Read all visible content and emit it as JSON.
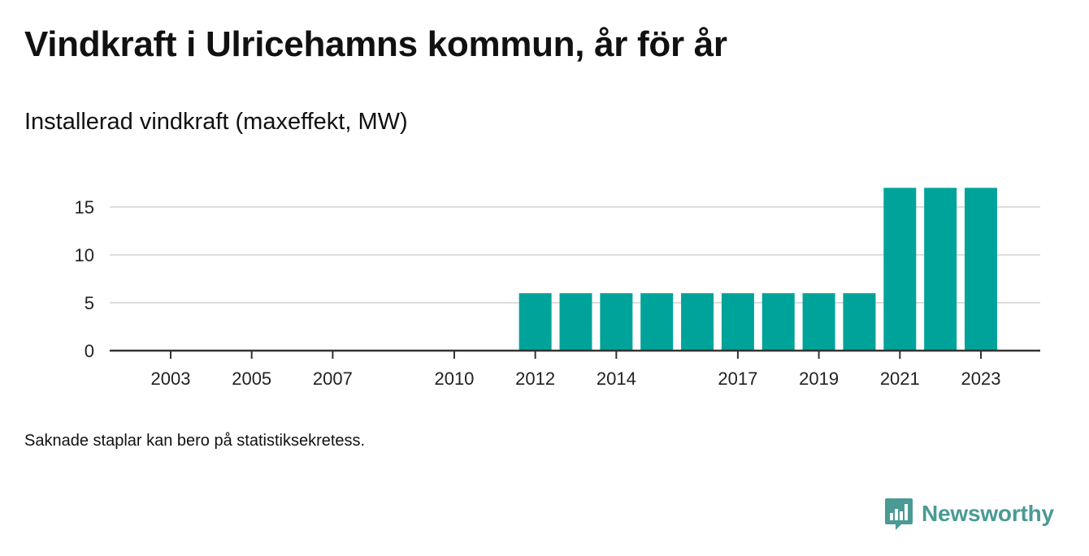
{
  "title": "Vindkraft i Ulricehamns kommun, år för år",
  "subtitle": "Installerad vindkraft (maxeffekt, MW)",
  "footnote": "Saknade staplar kan bero på statistiksekretess.",
  "brand": {
    "name": "Newsworthy",
    "icon": "newsworthy-logo-icon",
    "color": "#4a9a95"
  },
  "chart_data": {
    "type": "bar",
    "title": "Vindkraft i Ulricehamns kommun, år för år",
    "subtitle": "Installerad vindkraft (maxeffekt, MW)",
    "xlabel": "",
    "ylabel": "",
    "x": [
      2003,
      2004,
      2005,
      2006,
      2007,
      2008,
      2009,
      2010,
      2011,
      2012,
      2013,
      2014,
      2015,
      2016,
      2017,
      2018,
      2019,
      2020,
      2021,
      2022,
      2023
    ],
    "values": [
      0,
      0,
      0,
      0,
      0,
      0,
      0,
      0,
      0,
      6,
      6,
      6,
      6,
      6,
      6,
      6,
      6,
      6,
      17,
      17,
      17
    ],
    "x_tick_labels": [
      "2003",
      "2005",
      "2007",
      "2010",
      "2012",
      "2014",
      "2017",
      "2019",
      "2021",
      "2023"
    ],
    "y_ticks": [
      0,
      5,
      10,
      15
    ],
    "ylim": [
      0,
      17.5
    ],
    "grid": true,
    "bar_color": "#00a39a",
    "grid_color": "#dddddd",
    "axis_color": "#333333"
  }
}
